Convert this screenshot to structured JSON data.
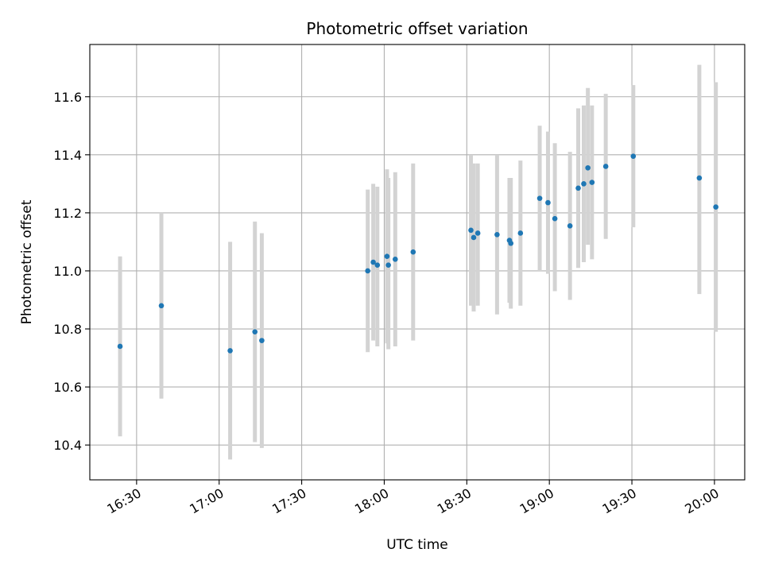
{
  "chart_data": {
    "type": "scatter",
    "title": "Photometric offset variation",
    "xlabel": "UTC time",
    "ylabel": "Photometric offset",
    "xlim": [
      "16:13",
      "20:11"
    ],
    "ylim": [
      10.28,
      11.78
    ],
    "x_ticks": [
      "16:30",
      "17:00",
      "17:30",
      "18:00",
      "18:30",
      "19:00",
      "19:30",
      "20:00"
    ],
    "y_ticks": [
      10.4,
      10.6,
      10.8,
      11.0,
      11.2,
      11.4,
      11.6
    ],
    "grid": true,
    "colors": {
      "point": "#1f77b4",
      "error_bar": "#d3d3d3",
      "grid": "#b0b0b0"
    },
    "points": [
      {
        "time": "16:24:00",
        "y": 10.74,
        "low": 10.43,
        "high": 11.05
      },
      {
        "time": "16:39:00",
        "y": 10.88,
        "low": 10.56,
        "high": 11.2
      },
      {
        "time": "17:04:00",
        "y": 10.725,
        "low": 10.35,
        "high": 11.1
      },
      {
        "time": "17:13:00",
        "y": 10.79,
        "low": 10.41,
        "high": 11.17
      },
      {
        "time": "17:15:30",
        "y": 10.76,
        "low": 10.39,
        "high": 11.13
      },
      {
        "time": "17:54:00",
        "y": 11.0,
        "low": 10.72,
        "high": 11.28
      },
      {
        "time": "17:56:00",
        "y": 11.03,
        "low": 10.76,
        "high": 11.3
      },
      {
        "time": "17:57:30",
        "y": 11.02,
        "low": 10.74,
        "high": 11.29
      },
      {
        "time": "18:01:00",
        "y": 11.05,
        "low": 10.75,
        "high": 11.35
      },
      {
        "time": "18:01:30",
        "y": 11.02,
        "low": 10.73,
        "high": 11.32
      },
      {
        "time": "18:04:00",
        "y": 11.04,
        "low": 10.74,
        "high": 11.34
      },
      {
        "time": "18:10:30",
        "y": 11.065,
        "low": 10.76,
        "high": 11.37
      },
      {
        "time": "18:31:30",
        "y": 11.14,
        "low": 10.88,
        "high": 11.4
      },
      {
        "time": "18:32:30",
        "y": 11.115,
        "low": 10.86,
        "high": 11.37
      },
      {
        "time": "18:34:00",
        "y": 11.13,
        "low": 10.88,
        "high": 11.37
      },
      {
        "time": "18:41:00",
        "y": 11.125,
        "low": 10.85,
        "high": 11.4
      },
      {
        "time": "18:45:30",
        "y": 11.105,
        "low": 10.89,
        "high": 11.32
      },
      {
        "time": "18:46:00",
        "y": 11.095,
        "low": 10.87,
        "high": 11.32
      },
      {
        "time": "18:49:30",
        "y": 11.13,
        "low": 10.88,
        "high": 11.38
      },
      {
        "time": "18:56:30",
        "y": 11.25,
        "low": 11.0,
        "high": 11.5
      },
      {
        "time": "18:59:30",
        "y": 11.235,
        "low": 10.99,
        "high": 11.48
      },
      {
        "time": "19:02:00",
        "y": 11.18,
        "low": 10.93,
        "high": 11.44
      },
      {
        "time": "19:07:30",
        "y": 11.155,
        "low": 10.9,
        "high": 11.41
      },
      {
        "time": "19:10:30",
        "y": 11.285,
        "low": 11.01,
        "high": 11.56
      },
      {
        "time": "19:12:30",
        "y": 11.3,
        "low": 11.03,
        "high": 11.57
      },
      {
        "time": "19:14:00",
        "y": 11.355,
        "low": 11.09,
        "high": 11.63
      },
      {
        "time": "19:15:30",
        "y": 11.305,
        "low": 11.04,
        "high": 11.57
      },
      {
        "time": "19:20:30",
        "y": 11.36,
        "low": 11.11,
        "high": 11.61
      },
      {
        "time": "19:30:30",
        "y": 11.395,
        "low": 11.15,
        "high": 11.64
      },
      {
        "time": "19:54:30",
        "y": 11.32,
        "low": 10.92,
        "high": 11.71
      },
      {
        "time": "20:00:30",
        "y": 11.22,
        "low": 10.79,
        "high": 11.65
      }
    ]
  }
}
